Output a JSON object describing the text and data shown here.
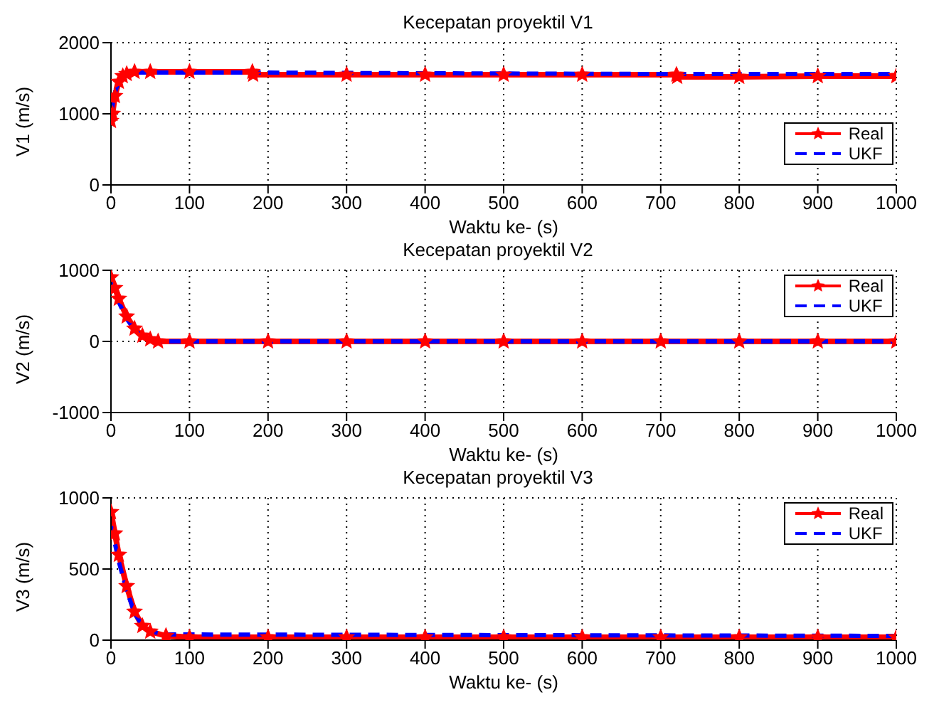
{
  "chart_data": [
    {
      "type": "line",
      "title": "Kecepatan proyektil V1",
      "xlabel": "Waktu ke- (s)",
      "ylabel": "V1 (m/s)",
      "xlim": [
        0,
        1000
      ],
      "xticks": [
        0,
        100,
        200,
        300,
        400,
        500,
        600,
        700,
        800,
        900,
        1000
      ],
      "ylim": [
        0,
        2000
      ],
      "yticks": [
        0,
        1000,
        2000
      ],
      "grid": true,
      "legend": "bottom right",
      "series": [
        {
          "name": "Real",
          "color": "#ff0000",
          "marker": "star",
          "line_style": "solid",
          "x": [
            0,
            2,
            5,
            10,
            15,
            20,
            30,
            50,
            100,
            180,
            181,
            300,
            400,
            500,
            600,
            720,
            721,
            800,
            900,
            1000
          ],
          "values": [
            900,
            1000,
            1250,
            1450,
            1530,
            1560,
            1590,
            1590,
            1590,
            1590,
            1550,
            1550,
            1550,
            1550,
            1550,
            1550,
            1520,
            1520,
            1530,
            1530
          ]
        },
        {
          "name": "UKF",
          "color": "#0000ff",
          "marker": "none",
          "line_style": "dashed",
          "x": [
            0,
            5,
            10,
            20,
            30,
            100,
            180,
            400,
            700,
            1000
          ],
          "values": [
            1000,
            1300,
            1450,
            1540,
            1580,
            1580,
            1580,
            1570,
            1560,
            1560
          ]
        }
      ]
    },
    {
      "type": "line",
      "title": "Kecepatan proyektil V2",
      "xlabel": "Waktu ke- (s)",
      "ylabel": "V2 (m/s)",
      "xlim": [
        0,
        1000
      ],
      "xticks": [
        0,
        100,
        200,
        300,
        400,
        500,
        600,
        700,
        800,
        900,
        1000
      ],
      "ylim": [
        -1000,
        1000
      ],
      "yticks": [
        -1000,
        0,
        1000
      ],
      "grid": true,
      "legend": "top right",
      "series": [
        {
          "name": "Real",
          "color": "#ff0000",
          "marker": "star",
          "line_style": "solid",
          "x": [
            0,
            5,
            10,
            20,
            30,
            40,
            50,
            60,
            100,
            200,
            300,
            400,
            500,
            600,
            700,
            800,
            900,
            1000
          ],
          "values": [
            900,
            750,
            600,
            350,
            180,
            80,
            30,
            0,
            0,
            0,
            0,
            0,
            0,
            0,
            0,
            0,
            0,
            0
          ]
        },
        {
          "name": "UKF",
          "color": "#0000ff",
          "marker": "none",
          "line_style": "dashed",
          "x": [
            0,
            5,
            10,
            20,
            30,
            40,
            50,
            60,
            1000
          ],
          "values": [
            850,
            700,
            550,
            320,
            160,
            70,
            30,
            0,
            0
          ]
        }
      ]
    },
    {
      "type": "line",
      "title": "Kecepatan proyektil V3",
      "xlabel": "Waktu ke- (s)",
      "ylabel": "V3 (m/s)",
      "xlim": [
        0,
        1000
      ],
      "xticks": [
        0,
        100,
        200,
        300,
        400,
        500,
        600,
        700,
        800,
        900,
        1000
      ],
      "ylim": [
        0,
        1000
      ],
      "yticks": [
        0,
        500,
        1000
      ],
      "grid": true,
      "legend": "top right",
      "series": [
        {
          "name": "Real",
          "color": "#ff0000",
          "marker": "star",
          "line_style": "solid",
          "x": [
            0,
            5,
            10,
            20,
            30,
            40,
            50,
            70,
            100,
            200,
            300,
            400,
            500,
            600,
            700,
            800,
            900,
            1000
          ],
          "values": [
            900,
            750,
            600,
            380,
            200,
            100,
            60,
            30,
            20,
            20,
            20,
            20,
            20,
            20,
            20,
            20,
            20,
            20
          ]
        },
        {
          "name": "UKF",
          "color": "#0000ff",
          "marker": "none",
          "line_style": "dashed",
          "x": [
            0,
            5,
            10,
            20,
            30,
            40,
            50,
            70,
            1000
          ],
          "values": [
            800,
            680,
            550,
            350,
            190,
            100,
            60,
            40,
            30
          ]
        }
      ]
    }
  ]
}
